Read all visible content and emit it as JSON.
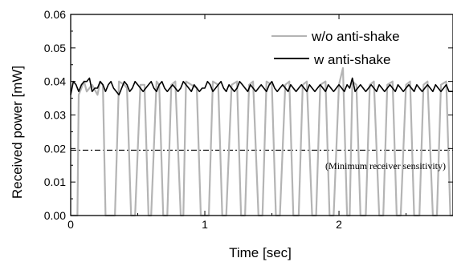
{
  "chart_data": {
    "type": "line",
    "xlabel": "Time [sec]",
    "ylabel": "Received power [mW]",
    "xlim": [
      0,
      2.85
    ],
    "ylim": [
      0,
      0.06
    ],
    "x_ticks": [
      {
        "value": 0,
        "label": "0"
      },
      {
        "value": 1,
        "label": "1"
      },
      {
        "value": 2,
        "label": "2"
      }
    ],
    "y_ticks": [
      {
        "value": 0,
        "label": "0.00"
      },
      {
        "value": 0.01,
        "label": "0.01"
      },
      {
        "value": 0.02,
        "label": "0.02"
      },
      {
        "value": 0.03,
        "label": "0.03"
      },
      {
        "value": 0.04,
        "label": "0.04"
      },
      {
        "value": 0.05,
        "label": "0.05"
      },
      {
        "value": 0.06,
        "label": "0.06"
      }
    ],
    "grid": false,
    "legend_position": "top-right",
    "series": [
      {
        "name": "w/o anti-shake",
        "color": "#b4b4b4",
        "line_style": "solid",
        "x": [
          0,
          0.05,
          0.06,
          0.1,
          0.12,
          0.16,
          0.2,
          0.22,
          0.24,
          0.26,
          0.3,
          0.33,
          0.36,
          0.4,
          0.42,
          0.45,
          0.48,
          0.52,
          0.55,
          0.58,
          0.6,
          0.64,
          0.66,
          0.69,
          0.72,
          0.75,
          0.78,
          0.82,
          0.84,
          0.86,
          0.9,
          0.94,
          0.97,
          1.0,
          1.03,
          1.06,
          1.1,
          1.13,
          1.16,
          1.2,
          1.24,
          1.27,
          1.3,
          1.33,
          1.36,
          1.4,
          1.43,
          1.46,
          1.5,
          1.53,
          1.56,
          1.6,
          1.63,
          1.66,
          1.7,
          1.73,
          1.76,
          1.8,
          1.83,
          1.86,
          1.9,
          1.93,
          1.96,
          2.0,
          2.03,
          2.06,
          2.08,
          2.1,
          2.13,
          2.16,
          2.2,
          2.23,
          2.26,
          2.3,
          2.33,
          2.36,
          2.4,
          2.43,
          2.46,
          2.5,
          2.53,
          2.56,
          2.6,
          2.63,
          2.66,
          2.7,
          2.73,
          2.76,
          2.8,
          2.83,
          2.85
        ],
        "y": [
          0,
          0,
          0.036,
          0.04,
          0.037,
          0.039,
          0.036,
          0.04,
          0.039,
          0,
          0,
          0,
          0.04,
          0.039,
          0.038,
          0,
          0,
          0.039,
          0.039,
          0,
          0,
          0.04,
          0.039,
          0,
          0,
          0.039,
          0.04,
          0,
          0,
          0.04,
          0.039,
          0.038,
          0,
          0,
          0,
          0.04,
          0.039,
          0,
          0,
          0.039,
          0.04,
          0,
          0,
          0.039,
          0.04,
          0,
          0,
          0.04,
          0.039,
          0,
          0,
          0.039,
          0.04,
          0,
          0,
          0.039,
          0.04,
          0,
          0,
          0.039,
          0.04,
          0,
          0,
          0.039,
          0.044,
          0,
          0,
          0.04,
          0.039,
          0,
          0,
          0.039,
          0.04,
          0,
          0,
          0.039,
          0.04,
          0,
          0,
          0.039,
          0.04,
          0,
          0,
          0.039,
          0.04,
          0,
          0,
          0.039,
          0.04,
          0,
          0
        ]
      },
      {
        "name": "w anti-shake",
        "color": "#000000",
        "line_style": "solid",
        "x": [
          0,
          0.02,
          0.04,
          0.06,
          0.08,
          0.1,
          0.12,
          0.14,
          0.16,
          0.18,
          0.2,
          0.22,
          0.24,
          0.26,
          0.28,
          0.3,
          0.32,
          0.34,
          0.36,
          0.38,
          0.4,
          0.42,
          0.44,
          0.46,
          0.48,
          0.5,
          0.52,
          0.54,
          0.56,
          0.58,
          0.6,
          0.62,
          0.64,
          0.66,
          0.68,
          0.7,
          0.72,
          0.74,
          0.76,
          0.78,
          0.8,
          0.82,
          0.84,
          0.86,
          0.88,
          0.9,
          0.92,
          0.94,
          0.96,
          0.98,
          1.0,
          1.02,
          1.04,
          1.06,
          1.08,
          1.1,
          1.12,
          1.14,
          1.16,
          1.18,
          1.2,
          1.22,
          1.24,
          1.26,
          1.28,
          1.3,
          1.32,
          1.34,
          1.36,
          1.38,
          1.4,
          1.42,
          1.44,
          1.46,
          1.48,
          1.5,
          1.52,
          1.54,
          1.56,
          1.58,
          1.6,
          1.62,
          1.64,
          1.66,
          1.68,
          1.7,
          1.72,
          1.74,
          1.76,
          1.78,
          1.8,
          1.82,
          1.84,
          1.86,
          1.88,
          1.9,
          1.92,
          1.94,
          1.96,
          1.98,
          2.0,
          2.02,
          2.04,
          2.06,
          2.08,
          2.1,
          2.12,
          2.14,
          2.16,
          2.18,
          2.2,
          2.22,
          2.24,
          2.26,
          2.28,
          2.3,
          2.32,
          2.34,
          2.36,
          2.38,
          2.4,
          2.42,
          2.44,
          2.46,
          2.48,
          2.5,
          2.52,
          2.54,
          2.56,
          2.58,
          2.6,
          2.62,
          2.64,
          2.66,
          2.68,
          2.7,
          2.72,
          2.74,
          2.76,
          2.78,
          2.8,
          2.82,
          2.85
        ],
        "y": [
          0.036,
          0.04,
          0.039,
          0.037,
          0.039,
          0.04,
          0.04,
          0.041,
          0.037,
          0.038,
          0.038,
          0.04,
          0.039,
          0.037,
          0.039,
          0.04,
          0.038,
          0.037,
          0.036,
          0.038,
          0.04,
          0.039,
          0.037,
          0.038,
          0.04,
          0.039,
          0.038,
          0.037,
          0.038,
          0.039,
          0.04,
          0.038,
          0.037,
          0.039,
          0.04,
          0.038,
          0.037,
          0.038,
          0.039,
          0.038,
          0.037,
          0.038,
          0.04,
          0.039,
          0.038,
          0.037,
          0.039,
          0.038,
          0.037,
          0.038,
          0.038,
          0.04,
          0.039,
          0.037,
          0.038,
          0.039,
          0.04,
          0.038,
          0.037,
          0.039,
          0.038,
          0.037,
          0.038,
          0.04,
          0.039,
          0.038,
          0.037,
          0.039,
          0.038,
          0.037,
          0.038,
          0.039,
          0.038,
          0.037,
          0.039,
          0.04,
          0.038,
          0.037,
          0.038,
          0.039,
          0.038,
          0.037,
          0.039,
          0.038,
          0.037,
          0.038,
          0.039,
          0.038,
          0.037,
          0.039,
          0.038,
          0.037,
          0.038,
          0.039,
          0.038,
          0.037,
          0.039,
          0.038,
          0.037,
          0.038,
          0.039,
          0.038,
          0.037,
          0.039,
          0.038,
          0.041,
          0.037,
          0.038,
          0.039,
          0.038,
          0.037,
          0.038,
          0.039,
          0.038,
          0.037,
          0.039,
          0.038,
          0.037,
          0.038,
          0.039,
          0.038,
          0.037,
          0.039,
          0.038,
          0.037,
          0.038,
          0.039,
          0.038,
          0.037,
          0.039,
          0.038,
          0.037,
          0.038,
          0.039,
          0.038,
          0.037,
          0.039,
          0.038,
          0.037,
          0.038,
          0.039,
          0.037,
          0.037
        ]
      }
    ],
    "reference_line": {
      "y": 0.0195,
      "line_style": "dash-dot",
      "color": "#000000",
      "label": "(Minimum receiver sensitivity)"
    }
  }
}
